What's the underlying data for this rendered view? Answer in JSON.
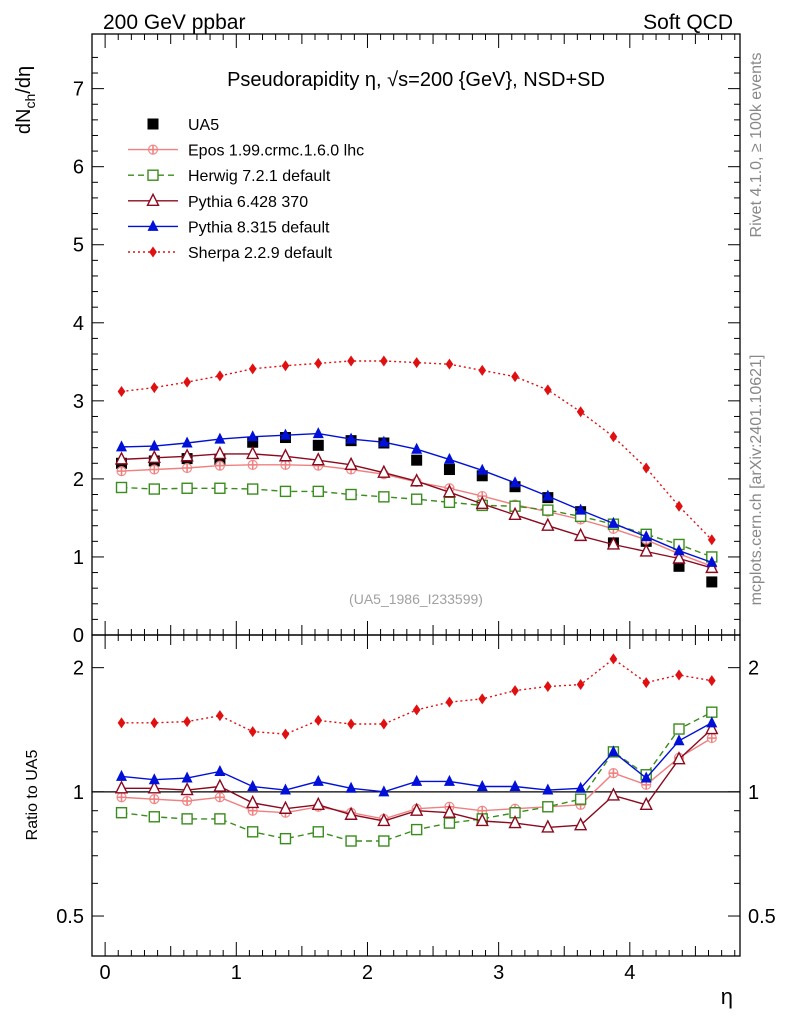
{
  "header": {
    "left": "200 GeV ppbar",
    "right": "Soft QCD"
  },
  "side_labels": {
    "rivet": "Rivet 4.1.0, ≥ 100k events",
    "mcplots": "mcplots.cern.ch [arXiv:2401.10621]"
  },
  "watermark": "(UA5_1986_I233599)",
  "colors": {
    "UA5": "#000000",
    "Epos": "#f08080",
    "Herwig": "#3a8c1e",
    "Pythia6": "#8b0a1e",
    "Pythia8": "#0010d8",
    "Sherpa": "#e01010"
  },
  "chart_data": [
    {
      "type": "scatter",
      "panel": "main",
      "title": "Pseudorapidity η, √s=200 {GeV}, NSD+SD",
      "xlabel": "η",
      "ylabel": "dNch/dη",
      "xlim": [
        -0.1,
        4.84
      ],
      "ylim": [
        0,
        7.7
      ],
      "yticks": [
        0,
        1,
        2,
        3,
        4,
        5,
        6,
        7
      ],
      "xticks": [
        0,
        1,
        2,
        3,
        4
      ],
      "x": [
        0.125,
        0.375,
        0.625,
        0.875,
        1.125,
        1.375,
        1.625,
        1.875,
        2.125,
        2.375,
        2.625,
        2.875,
        3.125,
        3.375,
        3.625,
        3.875,
        4.125,
        4.375,
        4.625
      ],
      "series": [
        {
          "name": "UA5",
          "key": "UA5",
          "legend": "UA5",
          "marker": "square-filled",
          "line": "none",
          "values": [
            2.2,
            2.23,
            2.26,
            2.25,
            2.47,
            2.53,
            2.43,
            2.49,
            2.46,
            2.24,
            2.12,
            2.04,
            1.9,
            1.76,
            1.58,
            1.18,
            1.2,
            0.88,
            0.68
          ]
        },
        {
          "name": "Epos 1.99.crmc.1.6.0 lhc",
          "key": "Epos",
          "legend": "Epos 1.99.crmc.1.6.0 lhc",
          "marker": "cross",
          "line": "solid",
          "values": [
            2.1,
            2.12,
            2.14,
            2.17,
            2.18,
            2.18,
            2.17,
            2.12,
            2.06,
            1.96,
            1.88,
            1.78,
            1.67,
            1.58,
            1.48,
            1.36,
            1.22,
            1.04,
            0.88
          ]
        },
        {
          "name": "Herwig 7.2.1 default",
          "key": "Herwig",
          "legend": "Herwig 7.2.1 default",
          "marker": "square-open",
          "line": "dashed",
          "values": [
            1.89,
            1.87,
            1.88,
            1.88,
            1.87,
            1.84,
            1.84,
            1.8,
            1.77,
            1.74,
            1.7,
            1.66,
            1.65,
            1.6,
            1.52,
            1.42,
            1.29,
            1.16,
            1.0
          ]
        },
        {
          "name": "Pythia 6.428 370",
          "key": "Pythia6",
          "legend": "Pythia 6.428 370",
          "marker": "triangle-open",
          "line": "solid",
          "values": [
            2.25,
            2.27,
            2.29,
            2.32,
            2.32,
            2.29,
            2.24,
            2.18,
            2.08,
            1.97,
            1.83,
            1.68,
            1.54,
            1.4,
            1.27,
            1.16,
            1.07,
            0.98,
            0.86
          ]
        },
        {
          "name": "Pythia 8.315 default",
          "key": "Pythia8",
          "legend": "Pythia 8.315 default",
          "marker": "triangle-filled",
          "line": "solid",
          "values": [
            2.41,
            2.42,
            2.46,
            2.51,
            2.54,
            2.56,
            2.58,
            2.51,
            2.47,
            2.38,
            2.25,
            2.11,
            1.95,
            1.78,
            1.6,
            1.43,
            1.26,
            1.08,
            0.93
          ]
        },
        {
          "name": "Sherpa 2.2.9 default",
          "key": "Sherpa",
          "legend": "Sherpa 2.2.9 default",
          "marker": "diamond-filled",
          "line": "dotted",
          "values": [
            3.12,
            3.17,
            3.24,
            3.32,
            3.41,
            3.45,
            3.48,
            3.51,
            3.51,
            3.49,
            3.47,
            3.39,
            3.31,
            3.14,
            2.86,
            2.54,
            2.14,
            1.65,
            1.22
          ]
        }
      ]
    },
    {
      "type": "scatter",
      "panel": "ratio",
      "ylabel": "Ratio to UA5",
      "xlabel": "η",
      "yscale": "log",
      "ylim": [
        0.4,
        2.4
      ],
      "yticks": [
        0.5,
        1,
        2
      ],
      "xticks": [
        0,
        1,
        2,
        3,
        4
      ],
      "x": [
        0.125,
        0.375,
        0.625,
        0.875,
        1.125,
        1.375,
        1.625,
        1.875,
        2.125,
        2.375,
        2.625,
        2.875,
        3.125,
        3.375,
        3.625,
        3.875,
        4.125,
        4.375,
        4.625
      ],
      "series": [
        {
          "name": "Epos 1.99.crmc.1.6.0 lhc",
          "key": "Epos",
          "marker": "cross",
          "line": "solid",
          "values": [
            0.97,
            0.96,
            0.95,
            0.97,
            0.9,
            0.89,
            0.92,
            0.89,
            0.86,
            0.91,
            0.92,
            0.9,
            0.91,
            0.92,
            0.93,
            1.11,
            1.04,
            1.21,
            1.35
          ]
        },
        {
          "name": "Herwig 7.2.1 default",
          "key": "Herwig",
          "marker": "square-open",
          "line": "dashed",
          "values": [
            0.89,
            0.87,
            0.86,
            0.86,
            0.8,
            0.77,
            0.8,
            0.76,
            0.76,
            0.81,
            0.84,
            0.86,
            0.89,
            0.92,
            0.96,
            1.25,
            1.1,
            1.42,
            1.56
          ]
        },
        {
          "name": "Pythia 6.428 370",
          "key": "Pythia6",
          "marker": "triangle-open",
          "line": "solid",
          "values": [
            1.02,
            1.02,
            1.01,
            1.03,
            0.94,
            0.91,
            0.93,
            0.88,
            0.85,
            0.9,
            0.89,
            0.85,
            0.84,
            0.82,
            0.83,
            0.98,
            0.93,
            1.2,
            1.42
          ]
        },
        {
          "name": "Pythia 8.315 default",
          "key": "Pythia8",
          "marker": "triangle-filled",
          "line": "solid",
          "values": [
            1.09,
            1.07,
            1.08,
            1.12,
            1.03,
            1.01,
            1.06,
            1.02,
            1.0,
            1.06,
            1.06,
            1.03,
            1.03,
            1.01,
            1.02,
            1.25,
            1.08,
            1.33,
            1.47
          ]
        },
        {
          "name": "Sherpa 2.2.9 default",
          "key": "Sherpa",
          "marker": "diamond-filled",
          "line": "dotted",
          "values": [
            1.47,
            1.47,
            1.48,
            1.53,
            1.4,
            1.38,
            1.49,
            1.46,
            1.46,
            1.58,
            1.65,
            1.68,
            1.76,
            1.8,
            1.82,
            2.1,
            1.84,
            1.92,
            1.86
          ]
        }
      ]
    }
  ]
}
